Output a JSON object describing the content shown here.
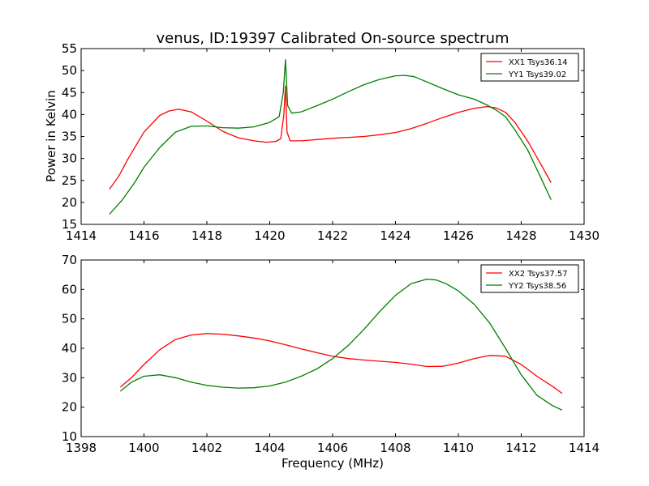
{
  "figure": {
    "title": "venus, ID:19397 Calibrated On-source spectrum",
    "ylabel": "Power in Kelvin",
    "xlabel": "Frequency (MHz)"
  },
  "colors": {
    "red": "#ff0000",
    "green": "#007f00"
  },
  "chart_data": [
    {
      "type": "line",
      "title": "venus, ID:19397 Calibrated On-source spectrum",
      "xlabel": "",
      "ylabel": "Power in Kelvin",
      "xlim": [
        1414,
        1430
      ],
      "ylim": [
        15,
        55
      ],
      "xticks": [
        1414,
        1416,
        1418,
        1420,
        1422,
        1424,
        1426,
        1428,
        1430
      ],
      "yticks": [
        15,
        20,
        25,
        30,
        35,
        40,
        45,
        50,
        55
      ],
      "legend_position": "top-right",
      "series": [
        {
          "name": "XX1 Tsys36.14",
          "color": "red",
          "x": [
            1414.9,
            1415.2,
            1415.5,
            1416.0,
            1416.5,
            1416.8,
            1417.1,
            1417.5,
            1418.0,
            1418.5,
            1419.0,
            1419.5,
            1419.9,
            1420.2,
            1420.35,
            1420.45,
            1420.5,
            1420.55,
            1420.65,
            1421.0,
            1421.5,
            1422.0,
            1422.5,
            1423.0,
            1423.5,
            1424.0,
            1424.5,
            1425.0,
            1425.5,
            1426.0,
            1426.5,
            1426.9,
            1427.2,
            1427.5,
            1427.8,
            1428.2,
            1428.6,
            1428.95
          ],
          "y": [
            23,
            26,
            30,
            36,
            39.8,
            40.8,
            41.2,
            40.6,
            38.5,
            36.2,
            34.7,
            34.0,
            33.7,
            33.9,
            34.5,
            40,
            46.5,
            36,
            34.0,
            34.0,
            34.3,
            34.6,
            34.8,
            35.0,
            35.4,
            35.9,
            36.8,
            38.0,
            39.3,
            40.5,
            41.4,
            41.8,
            41.5,
            40.5,
            38.2,
            34.0,
            29.0,
            24.5
          ]
        },
        {
          "name": "YY1 Tsys39.02",
          "color": "green",
          "x": [
            1414.9,
            1415.3,
            1415.7,
            1416.0,
            1416.5,
            1417.0,
            1417.5,
            1418.0,
            1418.5,
            1419.0,
            1419.5,
            1420.0,
            1420.3,
            1420.43,
            1420.5,
            1420.57,
            1420.7,
            1421.0,
            1421.5,
            1422.0,
            1422.5,
            1423.0,
            1423.5,
            1424.0,
            1424.3,
            1424.6,
            1425.0,
            1425.5,
            1426.0,
            1426.5,
            1426.9,
            1427.2,
            1427.5,
            1427.8,
            1428.2,
            1428.6,
            1428.95
          ],
          "y": [
            17.3,
            20.5,
            24.5,
            28.0,
            32.5,
            36.0,
            37.3,
            37.4,
            37.0,
            36.9,
            37.2,
            38.2,
            39.5,
            45,
            52.5,
            42,
            40.3,
            40.6,
            42.0,
            43.5,
            45.2,
            46.8,
            48.0,
            48.8,
            48.9,
            48.6,
            47.4,
            45.9,
            44.5,
            43.5,
            42.2,
            41.0,
            39.5,
            36.5,
            32.0,
            26.0,
            20.6
          ]
        }
      ]
    },
    {
      "type": "line",
      "title": "",
      "xlabel": "Frequency (MHz)",
      "ylabel": "",
      "xlim": [
        1398,
        1414
      ],
      "ylim": [
        10,
        70
      ],
      "xticks": [
        1398,
        1400,
        1402,
        1404,
        1406,
        1408,
        1410,
        1412,
        1414
      ],
      "yticks": [
        10,
        20,
        30,
        40,
        50,
        60,
        70
      ],
      "legend_position": "top-right",
      "series": [
        {
          "name": "XX2 Tsys37.57",
          "color": "red",
          "x": [
            1399.25,
            1399.6,
            1400.0,
            1400.5,
            1401.0,
            1401.5,
            1402.0,
            1402.5,
            1403.0,
            1403.5,
            1404.0,
            1404.5,
            1405.0,
            1405.5,
            1406.0,
            1406.5,
            1407.0,
            1407.5,
            1408.0,
            1408.5,
            1409.0,
            1409.5,
            1410.0,
            1410.5,
            1411.0,
            1411.5,
            1412.0,
            1412.5,
            1413.0,
            1413.3
          ],
          "y": [
            26.8,
            30.0,
            34.5,
            39.5,
            43.0,
            44.5,
            45.0,
            44.8,
            44.2,
            43.5,
            42.5,
            41.2,
            39.8,
            38.5,
            37.3,
            36.5,
            36.0,
            35.6,
            35.2,
            34.6,
            33.8,
            33.9,
            35.0,
            36.5,
            37.6,
            37.3,
            34.5,
            30.5,
            27.0,
            24.7
          ]
        },
        {
          "name": "YY2 Tsys38.56",
          "color": "green",
          "x": [
            1399.25,
            1399.6,
            1400.0,
            1400.5,
            1401.0,
            1401.5,
            1402.0,
            1402.5,
            1403.0,
            1403.5,
            1404.0,
            1404.5,
            1405.0,
            1405.5,
            1406.0,
            1406.5,
            1407.0,
            1407.5,
            1408.0,
            1408.5,
            1409.0,
            1409.3,
            1409.6,
            1410.0,
            1410.5,
            1411.0,
            1411.5,
            1412.0,
            1412.5,
            1413.0,
            1413.3
          ],
          "y": [
            25.4,
            28.5,
            30.5,
            31.0,
            30.0,
            28.5,
            27.4,
            26.8,
            26.5,
            26.6,
            27.2,
            28.5,
            30.5,
            33.0,
            36.5,
            41.0,
            46.5,
            52.5,
            58.0,
            62.0,
            63.5,
            63.2,
            62.0,
            59.5,
            55.0,
            48.5,
            40.0,
            31.0,
            24.0,
            20.5,
            19.0
          ]
        }
      ]
    }
  ]
}
